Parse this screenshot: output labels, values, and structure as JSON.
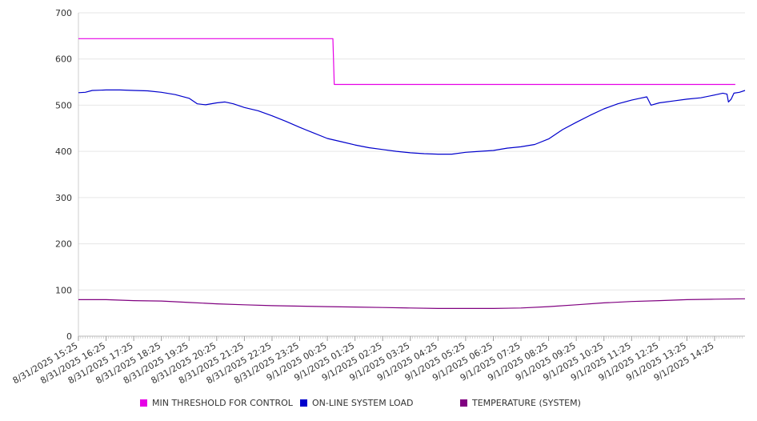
{
  "chart_data": {
    "type": "line",
    "title": "",
    "xlabel": "",
    "ylabel": "",
    "ylim": [
      0,
      700
    ],
    "yticks": [
      0,
      100,
      200,
      300,
      400,
      500,
      600,
      700
    ],
    "xticks": [
      "8/31/2025 15:25",
      "8/31/2025 16:25",
      "8/31/2025 17:25",
      "8/31/2025 18:25",
      "8/31/2025 19:25",
      "8/31/2025 20:25",
      "8/31/2025 21:25",
      "8/31/2025 22:25",
      "8/31/2025 23:25",
      "9/1/2025 00:25",
      "9/1/2025 01:25",
      "9/1/2025 02:25",
      "9/1/2025 03:25",
      "9/1/2025 04:25",
      "9/1/2025 05:25",
      "9/1/2025 06:25",
      "9/1/2025 07:25",
      "9/1/2025 08:25",
      "9/1/2025 09:25",
      "9/1/2025 10:25",
      "9/1/2025 11:25",
      "9/1/2025 12:25",
      "9/1/2025 13:25",
      "9/1/2025 14:25"
    ],
    "grid": true,
    "legend_position": "bottom",
    "series": [
      {
        "name": "MIN THRESHOLD FOR CONTROL",
        "color": "#e600e6",
        "points": [
          [
            0,
            644
          ],
          [
            9.2,
            644
          ],
          [
            9.25,
            545
          ],
          [
            23.75,
            545
          ]
        ]
      },
      {
        "name": "ON-LINE SYSTEM LOAD",
        "color": "#0000cc",
        "points": [
          [
            0,
            527
          ],
          [
            0.25,
            528
          ],
          [
            0.5,
            532
          ],
          [
            1,
            533
          ],
          [
            1.5,
            533
          ],
          [
            2,
            532
          ],
          [
            2.5,
            531
          ],
          [
            3,
            528
          ],
          [
            3.5,
            523
          ],
          [
            4,
            515
          ],
          [
            4.3,
            503
          ],
          [
            4.6,
            501
          ],
          [
            5,
            505
          ],
          [
            5.3,
            507
          ],
          [
            5.6,
            503
          ],
          [
            6,
            495
          ],
          [
            6.5,
            488
          ],
          [
            7,
            477
          ],
          [
            7.5,
            465
          ],
          [
            8,
            452
          ],
          [
            8.5,
            440
          ],
          [
            9,
            428
          ],
          [
            9.5,
            421
          ],
          [
            10,
            414
          ],
          [
            10.5,
            408
          ],
          [
            11,
            404
          ],
          [
            11.5,
            400
          ],
          [
            12,
            397
          ],
          [
            12.5,
            395
          ],
          [
            13,
            394
          ],
          [
            13.5,
            394
          ],
          [
            14,
            398
          ],
          [
            14.5,
            400
          ],
          [
            15,
            402
          ],
          [
            15.5,
            407
          ],
          [
            16,
            410
          ],
          [
            16.5,
            415
          ],
          [
            17,
            427
          ],
          [
            17.5,
            447
          ],
          [
            18,
            463
          ],
          [
            18.5,
            478
          ],
          [
            19,
            492
          ],
          [
            19.5,
            503
          ],
          [
            20,
            511
          ],
          [
            20.3,
            515
          ],
          [
            20.55,
            518
          ],
          [
            20.7,
            500
          ],
          [
            21,
            505
          ],
          [
            21.5,
            509
          ],
          [
            22,
            513
          ],
          [
            22.5,
            516
          ],
          [
            23,
            522
          ],
          [
            23.3,
            526
          ],
          [
            23.45,
            524
          ],
          [
            23.5,
            507
          ],
          [
            23.6,
            513
          ],
          [
            23.7,
            526
          ],
          [
            23.9,
            528
          ],
          [
            24.1,
            532
          ]
        ]
      },
      {
        "name": "TEMPERATURE (SYSTEM)",
        "color": "#800080",
        "points": [
          [
            0,
            79
          ],
          [
            1,
            79
          ],
          [
            2,
            77
          ],
          [
            3,
            76
          ],
          [
            4,
            73
          ],
          [
            5,
            70
          ],
          [
            6,
            68
          ],
          [
            7,
            66
          ],
          [
            8,
            65
          ],
          [
            9,
            64
          ],
          [
            10,
            63
          ],
          [
            11,
            62
          ],
          [
            12,
            61
          ],
          [
            13,
            60
          ],
          [
            14,
            60
          ],
          [
            15,
            60
          ],
          [
            16,
            61
          ],
          [
            17,
            64
          ],
          [
            18,
            68
          ],
          [
            19,
            72
          ],
          [
            20,
            75
          ],
          [
            21,
            77
          ],
          [
            22,
            79
          ],
          [
            23,
            80
          ],
          [
            24.1,
            81
          ]
        ]
      }
    ]
  }
}
